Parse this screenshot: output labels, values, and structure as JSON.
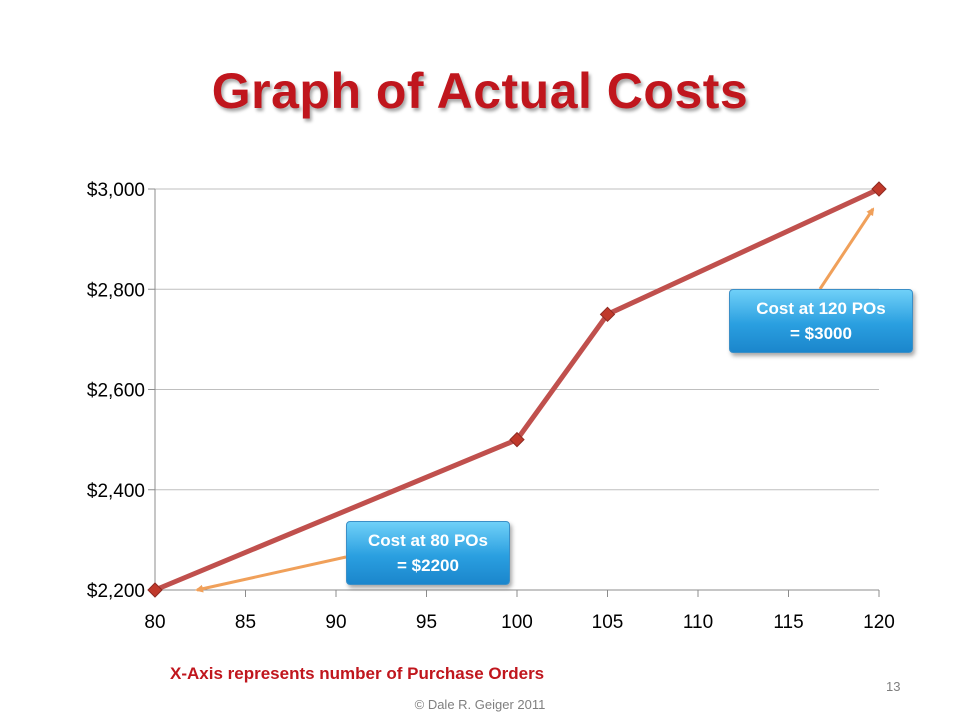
{
  "slide": {
    "title": "Graph of Actual Costs",
    "footnote": "X-Axis represents number of Purchase Orders",
    "page_number": "13",
    "copyright": "© Dale R. Geiger 2011"
  },
  "callouts": [
    {
      "line1": "Cost at 80 POs",
      "line2": "= $2200"
    },
    {
      "line1": "Cost at 120 POs",
      "line2": "= $3000"
    }
  ],
  "colors": {
    "title": "#c0161d",
    "series_line": "#c0504d",
    "marker": "#c0392b",
    "arrow": "#f0a05a",
    "grid": "#bfbfbf"
  },
  "chart_data": {
    "type": "line",
    "title": "",
    "xlabel": "",
    "ylabel": "",
    "xlim": [
      80,
      120
    ],
    "ylim": [
      2200,
      3000
    ],
    "x_ticks": [
      80,
      85,
      90,
      95,
      100,
      105,
      110,
      115,
      120
    ],
    "x_tick_labels": [
      "80",
      "85",
      "90",
      "95",
      "100",
      "105",
      "110",
      "115",
      "120"
    ],
    "y_ticks": [
      2200,
      2400,
      2600,
      2800,
      3000
    ],
    "y_tick_labels": [
      "$2,200",
      "$2,400",
      "$2,600",
      "$2,800",
      "$3,000"
    ],
    "grid": "horizontal",
    "legend": "none",
    "series": [
      {
        "points": [
          [
            80,
            2200
          ],
          [
            100,
            2500
          ],
          [
            105,
            2750
          ],
          [
            120,
            3000
          ]
        ]
      }
    ]
  }
}
